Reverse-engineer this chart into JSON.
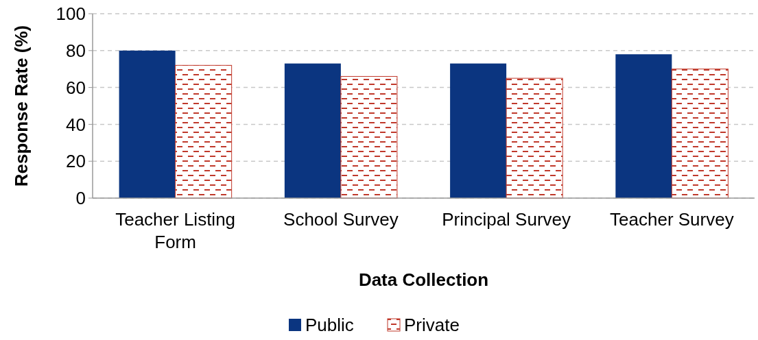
{
  "chart_data": {
    "type": "bar",
    "xlabel": "Data Collection",
    "ylabel": "Response Rate (%)",
    "categories": [
      "Teacher Listing Form",
      "School Survey",
      "Principal Survey",
      "Teacher Survey"
    ],
    "series": [
      {
        "name": "Public",
        "color": "#0b3580",
        "values": [
          80,
          73,
          73,
          78
        ]
      },
      {
        "name": "Private",
        "color": "#c0392b",
        "values": [
          72,
          66,
          65,
          70
        ]
      }
    ],
    "ylim": [
      0,
      100
    ],
    "yticks": [
      0,
      20,
      40,
      60,
      80,
      100
    ],
    "grid": "y",
    "legend": "bottom"
  }
}
